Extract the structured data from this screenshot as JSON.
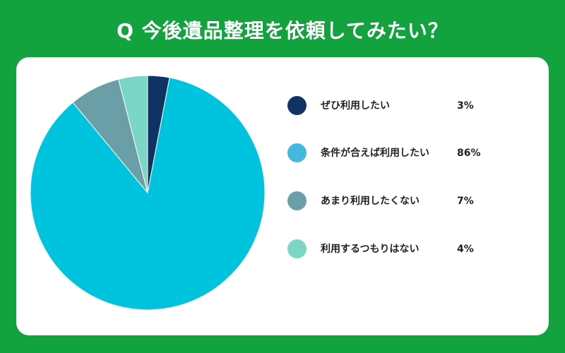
{
  "title": "Q 今後遺品整理を依頼してみたい？",
  "chart_data": {
    "type": "pie",
    "categories": [
      "ぜひ利用したい",
      "条件が合えば利用したい",
      "あまり利用したくない",
      "利用するつもりはない"
    ],
    "values": [
      3,
      86,
      7,
      4
    ],
    "value_labels": [
      "3%",
      "86%",
      "7%",
      "4%"
    ],
    "colors": [
      "#113364",
      "#00c4de",
      "#6a9fa8",
      "#7bd6c6"
    ],
    "legend_swatch_colors": [
      "#113364",
      "#45b8df",
      "#6a9fa8",
      "#7bd6c6"
    ],
    "legend_position": "right",
    "start_angle": "top",
    "direction": "clockwise"
  }
}
